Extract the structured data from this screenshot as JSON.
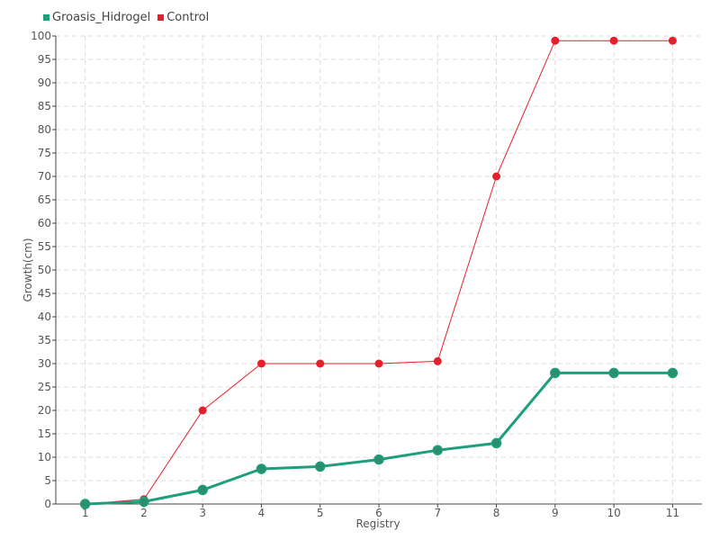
{
  "chart_data": {
    "type": "line",
    "x": [
      1,
      2,
      3,
      4,
      5,
      6,
      7,
      8,
      9,
      10,
      11
    ],
    "series": [
      {
        "name": "Groasis_Hidrogel",
        "color": "#1f9e7d",
        "values": [
          0,
          0.5,
          3,
          7.5,
          8,
          9.5,
          11.5,
          13,
          28,
          28,
          28
        ]
      },
      {
        "name": "Control",
        "color": "#e3202b",
        "values": [
          0,
          1,
          20,
          30,
          30,
          30,
          30.5,
          70,
          99,
          99,
          99
        ]
      }
    ],
    "xlabel": "Registry",
    "ylabel": "Growth(cm)",
    "xlim": [
      0.5,
      11.5
    ],
    "ylim": [
      0,
      100
    ],
    "ytick_step": 5,
    "grid": true,
    "legend_position": "top-left"
  }
}
